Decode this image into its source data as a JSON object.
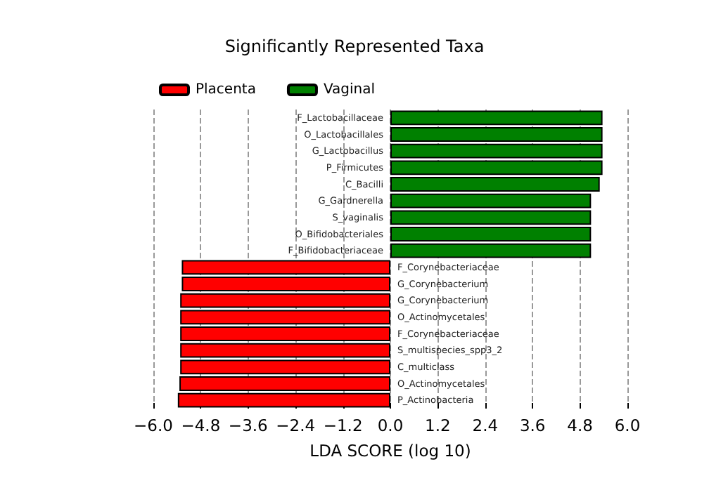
{
  "chart_data": {
    "type": "bar",
    "orientation": "horizontal",
    "title": "Significantly Represented Taxa",
    "xlabel": "LDA SCORE (log 10)",
    "categories": [
      "F_Lactobacillaceae",
      "O_Lactobacillales",
      "G_Lactobacillus",
      "P_Firmicutes",
      "C_Bacilli",
      "G_Gardnerella",
      "S_vaginalis",
      "O_Bifidobacteriales",
      "F_Bifidobacteriaceae",
      "F_Corynebacteriaceae",
      "G_Corynebacterium",
      "G_Corynebacterium",
      "O_Actinomycetales",
      "F_Corynebacteriaceae",
      "S_multispecies_spp3_2",
      "C_multiclass",
      "O_Actinomycetales",
      "P_Actinobacteria"
    ],
    "series": [
      {
        "name": "Placenta",
        "color": "#ff0000",
        "values": [
          null,
          null,
          null,
          null,
          null,
          null,
          null,
          null,
          null,
          -5.28,
          -5.28,
          -5.32,
          -5.32,
          -5.32,
          -5.32,
          -5.32,
          -5.34,
          -5.38
        ]
      },
      {
        "name": "Vaginal",
        "color": "#008000",
        "values": [
          5.37,
          5.37,
          5.37,
          5.37,
          5.3,
          5.08,
          5.08,
          5.08,
          5.08,
          null,
          null,
          null,
          null,
          null,
          null,
          null,
          null,
          null
        ]
      }
    ],
    "xlim": [
      -6,
      6
    ],
    "xticks": [
      {
        "value": -6,
        "label": "−6.0"
      },
      {
        "value": -4.8,
        "label": "−4.8"
      },
      {
        "value": -3.6,
        "label": "−3.6"
      },
      {
        "value": -2.4,
        "label": "−2.4"
      },
      {
        "value": -1.2,
        "label": "−1.2"
      },
      {
        "value": 0,
        "label": "0.0"
      },
      {
        "value": 1.2,
        "label": "1.2"
      },
      {
        "value": 2.4,
        "label": "2.4"
      },
      {
        "value": 3.6,
        "label": "3.6"
      },
      {
        "value": 4.8,
        "label": "4.8"
      },
      {
        "value": 6,
        "label": "6.0"
      }
    ],
    "grid": "x",
    "legend": "top left"
  }
}
